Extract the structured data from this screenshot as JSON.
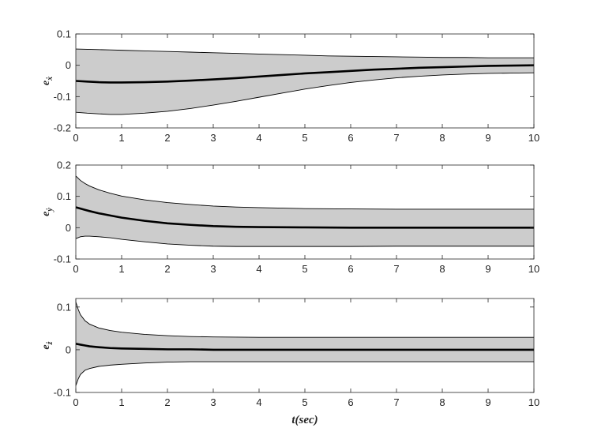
{
  "chart_data": [
    {
      "type": "area",
      "ylabel": "e_ẋ",
      "ylabel_base": "e",
      "ylabel_sub": "ẋ",
      "xlim": [
        0,
        10
      ],
      "ylim": [
        -0.2,
        0.1
      ],
      "xticks": [
        0,
        1,
        2,
        3,
        4,
        5,
        6,
        7,
        8,
        9,
        10
      ],
      "yticks": [
        -0.2,
        -0.1,
        0,
        0.1
      ],
      "ytick_labels": [
        "-0.2",
        "-0.1",
        "0",
        "0.1"
      ],
      "x": [
        0,
        0.25,
        0.5,
        0.75,
        1,
        1.5,
        2,
        2.5,
        3,
        3.5,
        4,
        4.5,
        5,
        5.5,
        6,
        6.5,
        7,
        7.5,
        8,
        8.5,
        9,
        9.5,
        10
      ],
      "series": [
        {
          "role": "mean",
          "values": [
            -0.05,
            -0.052,
            -0.054,
            -0.055,
            -0.055,
            -0.054,
            -0.052,
            -0.049,
            -0.045,
            -0.041,
            -0.036,
            -0.031,
            -0.026,
            -0.022,
            -0.018,
            -0.014,
            -0.011,
            -0.008,
            -0.006,
            -0.004,
            -0.002,
            -0.001,
            0.0
          ]
        },
        {
          "role": "upper",
          "values": [
            0.052,
            0.051,
            0.05,
            0.049,
            0.048,
            0.046,
            0.044,
            0.042,
            0.04,
            0.038,
            0.036,
            0.034,
            0.032,
            0.03,
            0.029,
            0.028,
            0.027,
            0.026,
            0.025,
            0.025,
            0.024,
            0.024,
            0.024
          ]
        },
        {
          "role": "lower",
          "values": [
            -0.15,
            -0.153,
            -0.155,
            -0.157,
            -0.157,
            -0.153,
            -0.147,
            -0.138,
            -0.127,
            -0.115,
            -0.102,
            -0.089,
            -0.076,
            -0.065,
            -0.055,
            -0.047,
            -0.04,
            -0.035,
            -0.031,
            -0.028,
            -0.026,
            -0.025,
            -0.024
          ]
        }
      ]
    },
    {
      "type": "area",
      "ylabel": "e_ẏ",
      "ylabel_base": "e",
      "ylabel_sub": "ẏ",
      "xlim": [
        0,
        10
      ],
      "ylim": [
        -0.1,
        0.2
      ],
      "xticks": [
        0,
        1,
        2,
        3,
        4,
        5,
        6,
        7,
        8,
        9,
        10
      ],
      "yticks": [
        -0.1,
        0,
        0.1,
        0.2
      ],
      "ytick_labels": [
        "-0.1",
        "0",
        "0.1",
        "0.2"
      ],
      "x": [
        0,
        0.1,
        0.2,
        0.3,
        0.5,
        0.75,
        1,
        1.5,
        2,
        2.5,
        3,
        3.5,
        4,
        5,
        6,
        7,
        8,
        9,
        10
      ],
      "series": [
        {
          "role": "mean",
          "values": [
            0.065,
            0.061,
            0.057,
            0.053,
            0.046,
            0.039,
            0.032,
            0.022,
            0.014,
            0.009,
            0.005,
            0.003,
            0.002,
            0.001,
            0.0,
            0.0,
            0.0,
            0.0,
            0.0
          ]
        },
        {
          "role": "upper",
          "values": [
            0.165,
            0.151,
            0.141,
            0.133,
            0.121,
            0.11,
            0.101,
            0.089,
            0.08,
            0.074,
            0.069,
            0.066,
            0.064,
            0.061,
            0.06,
            0.059,
            0.059,
            0.059,
            0.059
          ]
        },
        {
          "role": "lower",
          "values": [
            -0.035,
            -0.029,
            -0.027,
            -0.027,
            -0.029,
            -0.032,
            -0.037,
            -0.045,
            -0.052,
            -0.056,
            -0.059,
            -0.06,
            -0.06,
            -0.06,
            -0.06,
            -0.059,
            -0.059,
            -0.059,
            -0.059
          ]
        }
      ]
    },
    {
      "type": "area",
      "ylabel": "e_ż",
      "ylabel_base": "e",
      "ylabel_sub": "ż",
      "xlabel": "t(sec)",
      "xlim": [
        0,
        10
      ],
      "ylim": [
        -0.1,
        0.12
      ],
      "xticks": [
        0,
        1,
        2,
        3,
        4,
        5,
        6,
        7,
        8,
        9,
        10
      ],
      "yticks": [
        -0.1,
        0,
        0.1
      ],
      "ytick_labels": [
        "-0.1",
        "0",
        "0.1"
      ],
      "x": [
        0,
        0.05,
        0.1,
        0.2,
        0.3,
        0.5,
        0.75,
        1,
        1.5,
        2,
        2.5,
        3,
        4,
        5,
        6,
        7,
        8,
        9,
        10
      ],
      "series": [
        {
          "role": "mean",
          "values": [
            0.014,
            0.013,
            0.012,
            0.01,
            0.008,
            0.006,
            0.004,
            0.003,
            0.002,
            0.001,
            0.001,
            0.0,
            0.0,
            0.0,
            0.0,
            0.0,
            0.0,
            0.0,
            0.0
          ]
        },
        {
          "role": "upper",
          "values": [
            0.112,
            0.095,
            0.082,
            0.068,
            0.06,
            0.051,
            0.045,
            0.041,
            0.036,
            0.033,
            0.031,
            0.03,
            0.029,
            0.029,
            0.029,
            0.029,
            0.029,
            0.029,
            0.029
          ]
        },
        {
          "role": "lower",
          "values": [
            -0.084,
            -0.069,
            -0.058,
            -0.048,
            -0.044,
            -0.039,
            -0.036,
            -0.034,
            -0.031,
            -0.029,
            -0.028,
            -0.028,
            -0.028,
            -0.028,
            -0.028,
            -0.028,
            -0.028,
            -0.028,
            -0.028
          ]
        }
      ]
    }
  ],
  "style": {
    "band_fill": "#cccccc",
    "band_edge": "#000000",
    "mean_line": "#000000",
    "axes_color": "#262626",
    "background": "#ffffff"
  }
}
